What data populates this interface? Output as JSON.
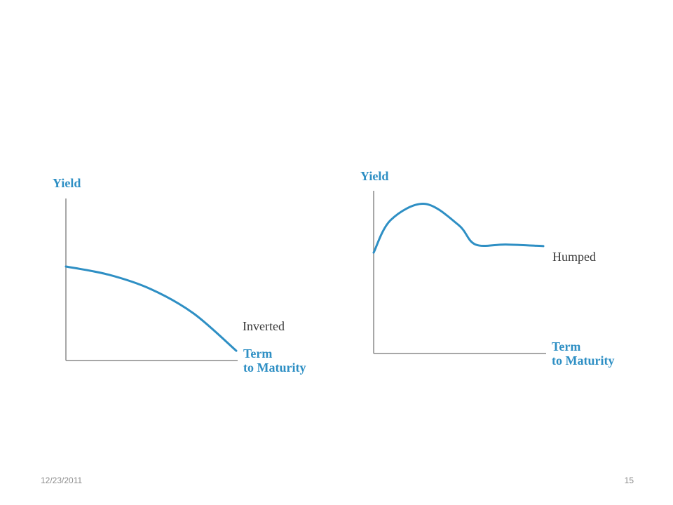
{
  "colors": {
    "accent": "#2e8fc4",
    "axis": "#8a8a8a",
    "text": "#3a3a3a",
    "footer": "#8c8c8c"
  },
  "chart_data": [
    {
      "type": "line",
      "ylabel": "Yield",
      "xlabel": [
        "Term",
        "to Maturity"
      ],
      "series": [
        {
          "name": "Inverted",
          "x": [
            0,
            0.25,
            0.5,
            0.75,
            1.0
          ],
          "y": [
            0.58,
            0.53,
            0.44,
            0.29,
            0.06
          ]
        }
      ]
    },
    {
      "type": "line",
      "ylabel": "Yield",
      "xlabel": [
        "Term",
        "to Maturity"
      ],
      "series": [
        {
          "name": "Humped",
          "x": [
            0,
            0.1,
            0.3,
            0.5,
            0.6,
            0.78,
            1.0
          ],
          "y": [
            0.62,
            0.82,
            0.92,
            0.79,
            0.67,
            0.67,
            0.66
          ]
        }
      ]
    }
  ],
  "footer": {
    "date": "12/23/2011",
    "page": "15"
  }
}
